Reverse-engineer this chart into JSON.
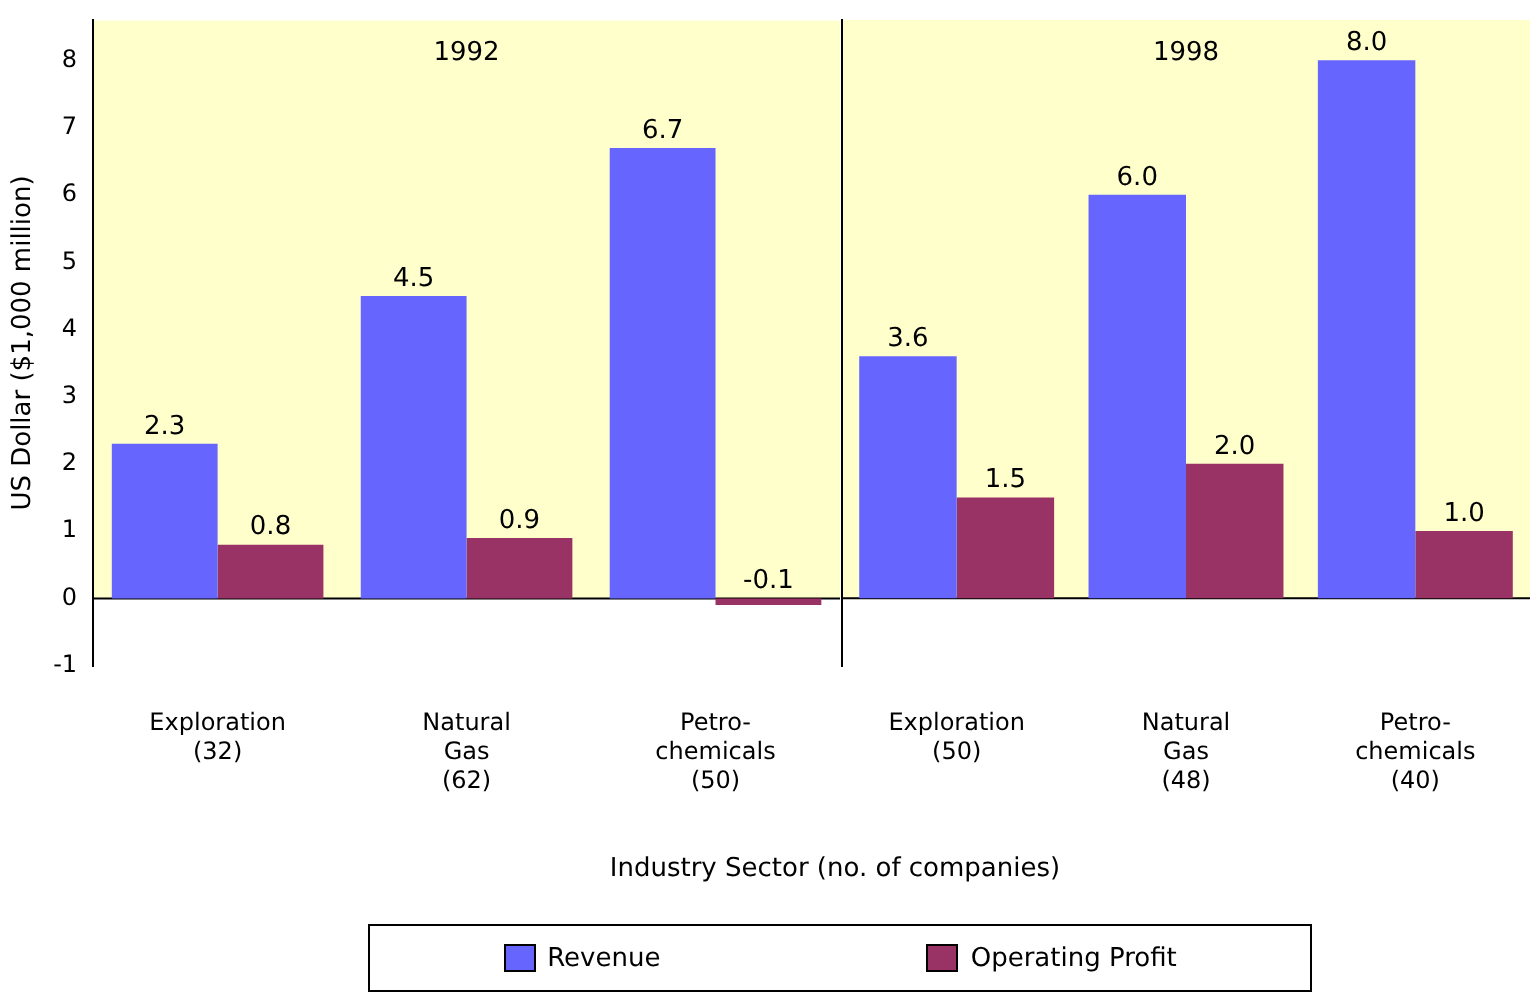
{
  "chart_data": [
    {
      "type": "bar",
      "title": "1992",
      "ylabel": "US Dollar ($1,000 million)",
      "xlabel": "Industry Sector (no. of companies)",
      "categories": [
        "Exploration\n(32)",
        "Natural\nGas\n(62)",
        "Petro-\nchemicals\n(50)"
      ],
      "ylim": [
        -1,
        8.6
      ],
      "yticks": [
        -1,
        0,
        1,
        2,
        3,
        4,
        5,
        6,
        7,
        8
      ],
      "legend": "bottom",
      "bands": [
        {
          "axis": "y",
          "from": 0,
          "to": 8.6,
          "color": "#ffffcc"
        }
      ],
      "series": [
        {
          "name": "Revenue",
          "color": "#6666ff",
          "values": [
            2.3,
            4.5,
            6.7
          ],
          "value_labels": [
            "2.3",
            "4.5",
            "6.7"
          ]
        },
        {
          "name": "Operating Profit",
          "color": "#993366",
          "values": [
            0.8,
            0.9,
            -0.1
          ],
          "value_labels": [
            "0.8",
            "0.9",
            "-0.1"
          ]
        }
      ]
    },
    {
      "type": "bar",
      "title": "1998",
      "categories": [
        "Exploration\n(50)",
        "Natural\nGas\n(48)",
        "Petro-\nchemicals\n(40)"
      ],
      "ylim": [
        -1,
        8.6
      ],
      "yticks": [
        -1,
        0,
        1,
        2,
        3,
        4,
        5,
        6,
        7,
        8
      ],
      "tick_labels": "x",
      "bands": [
        {
          "axis": "y",
          "from": 0,
          "to": 8.6,
          "color": "#ffffcc"
        }
      ],
      "series": [
        {
          "color": "#6666ff",
          "values": [
            3.6,
            6.0,
            8.0
          ],
          "value_labels": [
            "3.6",
            "6.0",
            "8.0"
          ]
        },
        {
          "color": "#993366",
          "values": [
            1.5,
            2.0,
            1.0
          ],
          "value_labels": [
            "1.5",
            "2.0",
            "1.0"
          ]
        }
      ]
    }
  ]
}
